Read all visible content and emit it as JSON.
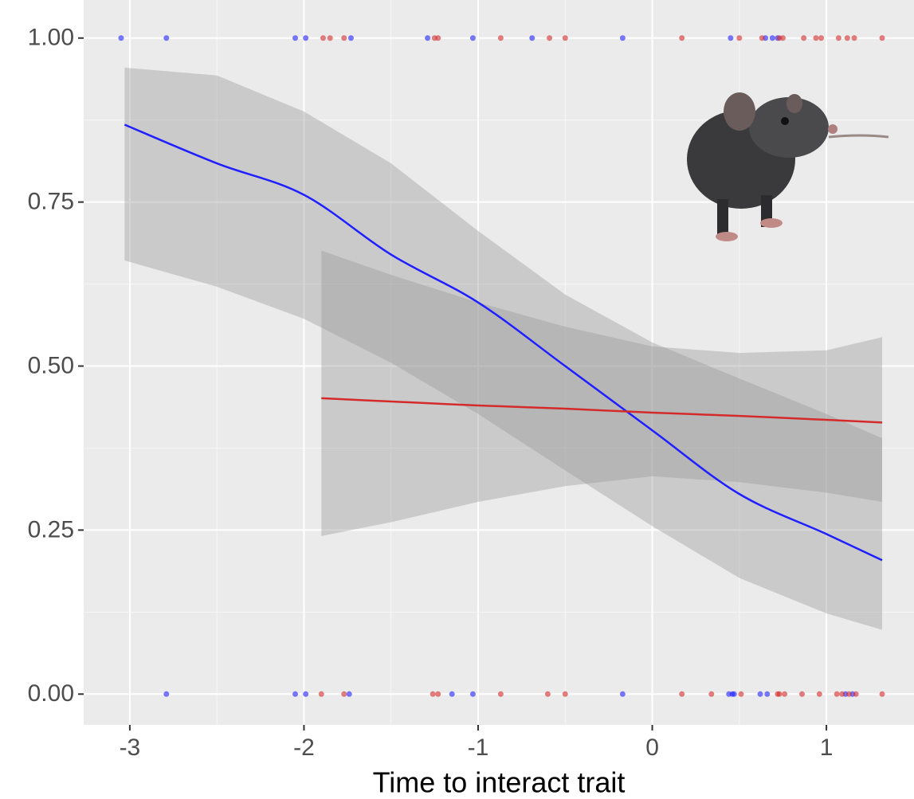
{
  "chart_data": {
    "type": "logistic",
    "x_label": "Time to interact trait",
    "xlim": [
      -3.265,
      1.503
    ],
    "ylim": [
      -0.047,
      1.058
    ],
    "xticks": [
      -3,
      -2,
      -1,
      0,
      1
    ],
    "yticks": [
      {
        "value": 0,
        "label": "0.00"
      },
      {
        "value": 0.25,
        "label": "0.25"
      },
      {
        "value": 0.5,
        "label": "0.50"
      },
      {
        "value": 0.75,
        "label": "0.75"
      },
      {
        "value": 1,
        "label": "1.00"
      }
    ],
    "grid": true,
    "series": [
      {
        "color": "#1f1fff",
        "x": [
          -3.03,
          -2.5,
          -2,
          -1.5,
          -1,
          -0.5,
          0,
          0.5,
          1,
          1.32
        ],
        "values": [
          0.868,
          0.809,
          0.761,
          0.67,
          0.597,
          0.5,
          0.402,
          0.305,
          0.244,
          0.204
        ],
        "ci_upper": [
          0.955,
          0.943,
          0.888,
          0.809,
          0.706,
          0.609,
          0.536,
          0.481,
          0.427,
          0.39
        ],
        "ci_lower": [
          0.661,
          0.621,
          0.572,
          0.505,
          0.427,
          0.341,
          0.256,
          0.177,
          0.123,
          0.098
        ],
        "points": {
          "x": [
            -3.05,
            -2.79,
            -2.05,
            -1.99,
            -1.73,
            -1.29,
            -1.03,
            -0.69,
            -0.17,
            0.45,
            0.65,
            0.69,
            0.72,
            -2.79,
            -2.05,
            -1.99,
            -1.74,
            -1.15,
            -1.03,
            -0.17,
            0.44,
            0.46,
            0.47,
            0.62,
            0.66,
            1.11,
            1.15
          ],
          "y": [
            1,
            1,
            1,
            1,
            1,
            1,
            1,
            1,
            1,
            1,
            1,
            1,
            1,
            0,
            0,
            0,
            0,
            0,
            0,
            0,
            0,
            0,
            0,
            0,
            0,
            0,
            0
          ]
        }
      },
      {
        "color": "#d42a2a",
        "x": [
          -1.9,
          -1.5,
          -1,
          -0.5,
          0,
          0.5,
          1,
          1.32
        ],
        "values": [
          0.451,
          0.446,
          0.44,
          0.435,
          0.429,
          0.424,
          0.418,
          0.414
        ],
        "ci_upper": [
          0.676,
          0.639,
          0.597,
          0.56,
          0.53,
          0.52,
          0.524,
          0.544
        ],
        "ci_lower": [
          0.241,
          0.262,
          0.293,
          0.317,
          0.332,
          0.323,
          0.307,
          0.293
        ],
        "points": {
          "x": [
            -1.89,
            -1.85,
            -1.77,
            -1.25,
            -1.23,
            -0.87,
            -0.59,
            -0.5,
            0.17,
            0.5,
            0.63,
            0.73,
            0.75,
            0.87,
            0.94,
            0.97,
            1.07,
            1.12,
            1.16,
            1.32,
            -1.9,
            -1.77,
            -1.26,
            -1.23,
            -0.87,
            -0.6,
            -0.5,
            0.17,
            0.34,
            0.51,
            0.72,
            0.73,
            0.76,
            0.86,
            0.96,
            1.06,
            1.09,
            1.13,
            1.17,
            1.32
          ],
          "y": [
            1,
            1,
            1,
            1,
            1,
            1,
            1,
            1,
            1,
            1,
            1,
            1,
            1,
            1,
            1,
            1,
            1,
            1,
            1,
            1,
            0,
            0,
            0,
            0,
            0,
            0,
            0,
            0,
            0,
            0,
            0,
            0,
            0,
            0,
            0,
            0,
            0,
            0,
            0,
            0
          ]
        }
      }
    ]
  }
}
